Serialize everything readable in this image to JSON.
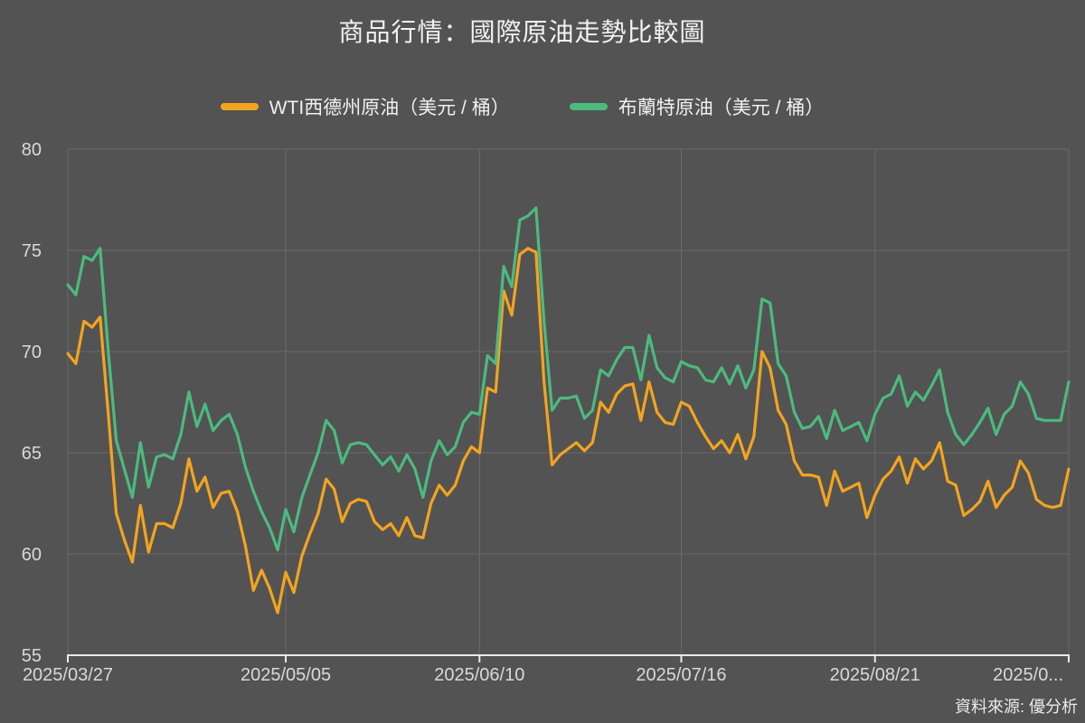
{
  "title": "商品行情：國際原油走勢比較圖",
  "source": "資料來源: 優分析",
  "legend": [
    {
      "label": "WTI西德州原油（美元 / 桶）",
      "color": "#f3a41f"
    },
    {
      "label": "布蘭特原油（美元 / 桶）",
      "color": "#4cba7f"
    }
  ],
  "colors": {
    "background": "#535353",
    "gridline": "#6a6a6a",
    "axis_line": "#eaeaea",
    "tick_label": "#d9d9d9",
    "wti_orange": "#f3a41f",
    "brent_green": "#4cba7f"
  },
  "chart_data": {
    "type": "line",
    "title": "商品行情：國際原油走勢比較圖",
    "xlabel": "",
    "ylabel": "",
    "ylim": [
      55,
      80
    ],
    "yticks": [
      55,
      60,
      65,
      70,
      75,
      80
    ],
    "grid": true,
    "legend_position": "top",
    "x_ticks": [
      {
        "index": 0,
        "label": "2025/03/27"
      },
      {
        "index": 27,
        "label": "2025/05/05"
      },
      {
        "index": 51,
        "label": "2025/06/10"
      },
      {
        "index": 76,
        "label": "2025/07/16"
      },
      {
        "index": 100,
        "label": "2025/08/21"
      },
      {
        "index": 124,
        "label": "2025/0...",
        "truncated": true
      }
    ],
    "series": [
      {
        "name": "WTI西德州原油（美元 / 桶）",
        "color": "#f3a41f",
        "values": [
          69.9,
          69.4,
          71.5,
          71.2,
          71.7,
          67.0,
          62.0,
          60.7,
          59.6,
          62.4,
          60.1,
          61.5,
          61.5,
          61.3,
          62.5,
          64.7,
          63.1,
          63.8,
          62.3,
          63.0,
          63.1,
          62.1,
          60.4,
          58.2,
          59.2,
          58.3,
          57.1,
          59.1,
          58.1,
          59.9,
          61.0,
          62.0,
          63.7,
          63.2,
          61.6,
          62.5,
          62.7,
          62.6,
          61.6,
          61.2,
          61.5,
          60.9,
          61.8,
          60.9,
          60.8,
          62.5,
          63.4,
          62.9,
          63.4,
          64.6,
          65.3,
          65.0,
          68.2,
          68.0,
          73.0,
          71.8,
          74.8,
          75.1,
          74.9,
          68.5,
          64.4,
          64.9,
          65.2,
          65.5,
          65.1,
          65.5,
          67.5,
          67.0,
          67.9,
          68.3,
          68.4,
          66.6,
          68.5,
          67.0,
          66.5,
          66.4,
          67.5,
          67.3,
          66.5,
          65.8,
          65.2,
          65.6,
          65.0,
          65.9,
          64.7,
          65.8,
          70.0,
          69.2,
          67.1,
          66.4,
          64.6,
          63.9,
          63.9,
          63.8,
          62.4,
          64.1,
          63.1,
          63.3,
          63.5,
          61.8,
          62.9,
          63.7,
          64.1,
          64.8,
          63.5,
          64.7,
          64.2,
          64.6,
          65.5,
          63.6,
          63.4,
          61.9,
          62.2,
          62.6,
          63.6,
          62.3,
          62.9,
          63.3,
          64.6,
          64.0,
          62.7,
          62.4,
          62.3,
          62.4,
          64.2
        ]
      },
      {
        "name": "布蘭特原油（美元 / 桶）",
        "color": "#4cba7f",
        "values": [
          73.3,
          72.8,
          74.7,
          74.5,
          75.1,
          70.1,
          65.6,
          64.2,
          62.8,
          65.5,
          63.3,
          64.8,
          64.9,
          64.7,
          65.9,
          68.0,
          66.3,
          67.4,
          66.1,
          66.6,
          66.9,
          65.9,
          64.3,
          63.1,
          62.1,
          61.3,
          60.2,
          62.2,
          61.1,
          62.8,
          63.9,
          65.0,
          66.6,
          66.1,
          64.5,
          65.4,
          65.5,
          65.4,
          64.9,
          64.4,
          64.8,
          64.1,
          64.9,
          64.2,
          62.8,
          64.6,
          65.6,
          64.9,
          65.3,
          66.5,
          67.0,
          66.9,
          69.8,
          69.4,
          74.2,
          73.2,
          76.5,
          76.7,
          77.1,
          71.5,
          67.1,
          67.7,
          67.7,
          67.8,
          66.7,
          67.1,
          69.1,
          68.8,
          69.6,
          70.2,
          70.2,
          68.6,
          70.8,
          69.2,
          68.7,
          68.5,
          69.5,
          69.3,
          69.2,
          68.6,
          68.5,
          69.2,
          68.4,
          69.3,
          68.2,
          69.1,
          72.6,
          72.4,
          69.4,
          68.8,
          67.0,
          66.2,
          66.3,
          66.8,
          65.7,
          67.1,
          66.1,
          66.3,
          66.5,
          65.6,
          66.9,
          67.7,
          67.9,
          68.8,
          67.3,
          68.0,
          67.6,
          68.3,
          69.1,
          67.0,
          65.9,
          65.4,
          65.9,
          66.5,
          67.2,
          65.9,
          66.9,
          67.3,
          68.5,
          67.9,
          66.7,
          66.6,
          66.6,
          66.6,
          68.5
        ]
      }
    ]
  }
}
